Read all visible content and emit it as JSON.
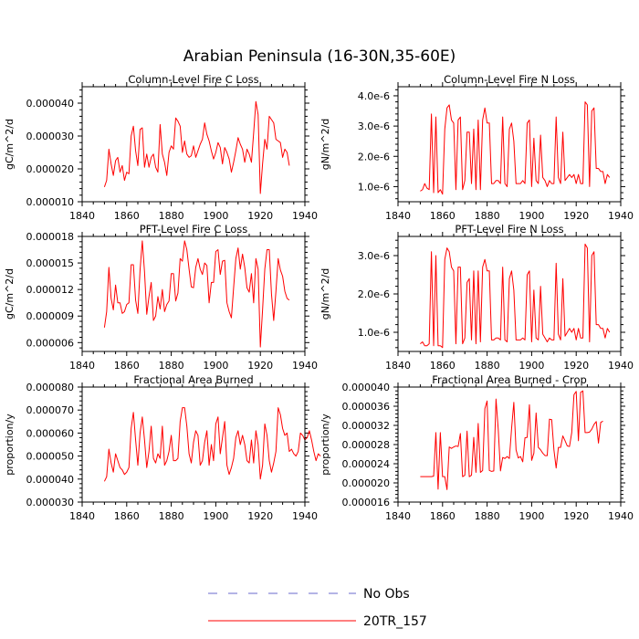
{
  "figure": {
    "title": "Arabian Peninsula (16-30N,35-60E)",
    "line_color": "#ff0000",
    "obs_color": "#6a6acd"
  },
  "legend": {
    "items": [
      {
        "label": "No Obs",
        "style": "dashed",
        "color": "#6a6acd"
      },
      {
        "label": "20TR_157",
        "style": "solid",
        "color": "#ff0000"
      }
    ]
  },
  "chart_data": [
    {
      "type": "line",
      "title": "Column-Level Fire C Loss",
      "xlabel": "",
      "ylabel": "gC/m^2/d",
      "xlim": [
        1840,
        1940
      ],
      "ylim": [
        1e-05,
        4.5e-05
      ],
      "xticks": [
        1840,
        1860,
        1880,
        1900,
        1920,
        1940
      ],
      "xticklabels": [
        "1840",
        "1860",
        "1880",
        "1900",
        "1920",
        "1940"
      ],
      "yticks": [
        1e-05,
        2e-05,
        3e-05,
        4e-05
      ],
      "yticklabels": [
        "0.000010",
        "0.000020",
        "0.000030",
        "0.000040"
      ],
      "x0": 1850,
      "series": [
        {
          "name": "20TR_157",
          "values": [
            1.45e-05,
            1.65e-05,
            2.6e-05,
            2.15e-05,
            1.8e-05,
            2.25e-05,
            2.35e-05,
            1.9e-05,
            2.1e-05,
            1.65e-05,
            1.9e-05,
            1.85e-05,
            3e-05,
            3.3e-05,
            2.55e-05,
            2.1e-05,
            3.2e-05,
            3.25e-05,
            2.05e-05,
            2.45e-05,
            2.05e-05,
            2.35e-05,
            2.45e-05,
            2.05e-05,
            1.9e-05,
            3.35e-05,
            2.45e-05,
            2.2e-05,
            1.8e-05,
            2.5e-05,
            2.7e-05,
            2.6e-05,
            3.55e-05,
            3.45e-05,
            3.3e-05,
            2.5e-05,
            2.85e-05,
            2.45e-05,
            2.35e-05,
            2.4e-05,
            2.7e-05,
            2.35e-05,
            2.55e-05,
            2.75e-05,
            2.9e-05,
            3.4e-05,
            3.05e-05,
            2.85e-05,
            2.55e-05,
            2.3e-05,
            2.5e-05,
            2.8e-05,
            2.65e-05,
            2.15e-05,
            2.65e-05,
            2.5e-05,
            2.3e-05,
            1.9e-05,
            2.2e-05,
            2.55e-05,
            2.95e-05,
            2.75e-05,
            2.6e-05,
            2.2e-05,
            2.6e-05,
            2.45e-05,
            2.2e-05,
            3.1e-05,
            4.05e-05,
            3.65e-05,
            1.25e-05,
            2.15e-05,
            2.9e-05,
            2.6e-05,
            3.6e-05,
            3.5e-05,
            3.4e-05,
            2.9e-05,
            2.85e-05,
            2.8e-05,
            2.35e-05,
            2.6e-05,
            2.5e-05,
            2.1e-05
          ]
        }
      ]
    },
    {
      "type": "line",
      "title": "Column-Level Fire N Loss",
      "xlabel": "",
      "ylabel": "gN/m^2/d",
      "xlim": [
        1840,
        1940
      ],
      "ylim": [
        5e-07,
        4.3e-06
      ],
      "xticks": [
        1840,
        1860,
        1880,
        1900,
        1920,
        1940
      ],
      "xticklabels": [
        "1840",
        "1860",
        "1880",
        "1900",
        "1920",
        "1940"
      ],
      "yticks": [
        1e-06,
        2e-06,
        3e-06,
        4e-06
      ],
      "yticklabels": [
        "1.0e-6",
        "2.0e-6",
        "3.0e-6",
        "4.0e-6"
      ],
      "x0": 1850,
      "series": [
        {
          "name": "20TR_157",
          "values": [
            8.5e-07,
            9e-07,
            1.1e-06,
            9.5e-07,
            9e-07,
            3.4e-06,
            8e-07,
            3.3e-06,
            8e-07,
            9e-07,
            7.5e-07,
            2.9e-06,
            3.6e-06,
            3.7e-06,
            3.2e-06,
            3.1e-06,
            9e-07,
            3.2e-06,
            3.3e-06,
            9e-07,
            1.2e-06,
            2.8e-06,
            2.8e-06,
            1.1e-06,
            2.9e-06,
            9e-07,
            3.2e-06,
            9e-07,
            3.2e-06,
            3.6e-06,
            3.1e-06,
            3.1e-06,
            1.1e-06,
            1.1e-06,
            1.2e-06,
            1.2e-06,
            1.1e-06,
            3.3e-06,
            1.1e-06,
            1e-06,
            2.9e-06,
            3.1e-06,
            2.5e-06,
            1.1e-06,
            1.1e-06,
            1.1e-06,
            1.2e-06,
            1.1e-06,
            3.1e-06,
            3.2e-06,
            1e-06,
            2.6e-06,
            1.2e-06,
            1.1e-06,
            2.7e-06,
            1.3e-06,
            1.2e-06,
            1e-06,
            1.2e-06,
            1.1e-06,
            1.1e-06,
            3.3e-06,
            1.3e-06,
            1.1e-06,
            2.8e-06,
            1.2e-06,
            1.3e-06,
            1.4e-06,
            1.3e-06,
            1.4e-06,
            1.1e-06,
            1.4e-06,
            1.1e-06,
            1.1e-06,
            3.8e-06,
            3.7e-06,
            1e-06,
            3.5e-06,
            3.6e-06,
            1.6e-06,
            1.6e-06,
            1.5e-06,
            1.5e-06,
            1.1e-06,
            1.4e-06,
            1.3e-06
          ]
        }
      ]
    },
    {
      "type": "line",
      "title": "PFT-Level Fire C Loss",
      "xlabel": "",
      "ylabel": "gC/m^2/d",
      "xlim": [
        1840,
        1940
      ],
      "ylim": [
        5e-06,
        1.8e-05
      ],
      "xticks": [
        1840,
        1860,
        1880,
        1900,
        1920,
        1940
      ],
      "xticklabels": [
        "1840",
        "1860",
        "1880",
        "1900",
        "1920",
        "1940"
      ],
      "yticks": [
        6e-06,
        9e-06,
        1.2e-05,
        1.5e-05,
        1.8e-05
      ],
      "yticklabels": [
        "0.000006",
        "0.000009",
        "0.000012",
        "0.000015",
        "0.000018"
      ],
      "x0": 1850,
      "series": [
        {
          "name": "20TR_157",
          "values": [
            7.7e-06,
            9.5e-06,
            1.45e-05,
            1.1e-05,
            9.7e-06,
            1.25e-05,
            1.05e-05,
            1.05e-05,
            9.3e-06,
            9.5e-06,
            1.03e-05,
            1.05e-05,
            1.48e-05,
            1.48e-05,
            1.08e-05,
            9.3e-06,
            1.42e-05,
            1.75e-05,
            1.4e-05,
            9.2e-06,
            1.12e-05,
            1.28e-05,
            8.5e-06,
            9e-06,
            1.12e-05,
            9.8e-06,
            1.2e-05,
            9.5e-06,
            1.03e-05,
            1.07e-05,
            1.38e-05,
            1.38e-05,
            1.07e-05,
            1.16e-05,
            1.55e-05,
            1.52e-05,
            1.75e-05,
            1.65e-05,
            1.43e-05,
            1.23e-05,
            1.22e-05,
            1.45e-05,
            1.55e-05,
            1.43e-05,
            1.37e-05,
            1.5e-05,
            1.47e-05,
            1.05e-05,
            1.28e-05,
            1.28e-05,
            1.63e-05,
            1.65e-05,
            1.37e-05,
            1.52e-05,
            1.53e-05,
            1.05e-05,
            9.5e-06,
            8.8e-06,
            1.22e-05,
            1.55e-05,
            1.67e-05,
            1.43e-05,
            1.6e-05,
            1.45e-05,
            1.22e-05,
            1.17e-05,
            1.38e-05,
            1.05e-05,
            1.55e-05,
            1.43e-05,
            5.5e-06,
            9.7e-06,
            1.43e-05,
            1.65e-05,
            1.65e-05,
            1.15e-05,
            8.5e-06,
            1.18e-05,
            1.55e-05,
            1.42e-05,
            1.35e-05,
            1.18e-05,
            1.1e-05,
            1.08e-05
          ]
        }
      ]
    },
    {
      "type": "line",
      "title": "PFT-Level Fire N Loss",
      "xlabel": "",
      "ylabel": "gN/m^2/d",
      "xlim": [
        1840,
        1940
      ],
      "ylim": [
        5e-07,
        3.5e-06
      ],
      "xticks": [
        1840,
        1860,
        1880,
        1900,
        1920,
        1940
      ],
      "xticklabels": [
        "1840",
        "1860",
        "1880",
        "1900",
        "1920",
        "1940"
      ],
      "yticks": [
        1e-06,
        2e-06,
        3e-06
      ],
      "yticklabels": [
        "1.0e-6",
        "2.0e-6",
        "3.0e-6"
      ],
      "x0": 1850,
      "series": [
        {
          "name": "20TR_157",
          "values": [
            7e-07,
            7.5e-07,
            6.5e-07,
            6.5e-07,
            7e-07,
            3.1e-06,
            6.5e-07,
            3e-06,
            6.5e-07,
            6.5e-07,
            6e-07,
            2.9e-06,
            3.2e-06,
            3.1e-06,
            2.7e-06,
            2.6e-06,
            7e-07,
            2.7e-06,
            2.7e-06,
            7e-07,
            8.5e-07,
            2.3e-06,
            2.4e-06,
            8e-07,
            2.6e-06,
            7e-07,
            2.6e-06,
            7.5e-07,
            2.7e-06,
            2.9e-06,
            2.6e-06,
            2.6e-06,
            8e-07,
            8e-07,
            8.5e-07,
            8.5e-07,
            8e-07,
            2.7e-06,
            8e-07,
            7.5e-07,
            2.4e-06,
            2.6e-06,
            2.1e-06,
            8e-07,
            8e-07,
            8e-07,
            8.5e-07,
            8e-07,
            2.5e-06,
            2.6e-06,
            7.5e-07,
            2.1e-06,
            8.5e-07,
            8e-07,
            2.2e-06,
            9.5e-07,
            8.5e-07,
            7.5e-07,
            8.5e-07,
            8e-07,
            8e-07,
            2.8e-06,
            9.5e-07,
            8e-07,
            2.4e-06,
            9e-07,
            1e-06,
            1.1e-06,
            1e-06,
            1.1e-06,
            8e-07,
            1.1e-06,
            8.5e-07,
            8.5e-07,
            3.3e-06,
            3.2e-06,
            7.5e-07,
            3e-06,
            3.1e-06,
            1.2e-06,
            1.2e-06,
            1.1e-06,
            1.1e-06,
            8.5e-07,
            1.1e-06,
            1e-06
          ]
        }
      ]
    },
    {
      "type": "line",
      "title": "Fractional Area Burned",
      "xlabel": "",
      "ylabel": "proportion/y",
      "xlim": [
        1840,
        1940
      ],
      "ylim": [
        3e-05,
        8e-05
      ],
      "xticks": [
        1840,
        1860,
        1880,
        1900,
        1920,
        1940
      ],
      "xticklabels": [
        "1840",
        "1860",
        "1880",
        "1900",
        "1920",
        "1940"
      ],
      "yticks": [
        3e-05,
        4e-05,
        5e-05,
        6e-05,
        7e-05,
        8e-05
      ],
      "yticklabels": [
        "0.000030",
        "0.000040",
        "0.000050",
        "0.000060",
        "0.000070",
        "0.000080"
      ],
      "x0": 1850,
      "series": [
        {
          "name": "20TR_157",
          "values": [
            3.9e-05,
            4.1e-05,
            5.3e-05,
            4.7e-05,
            4.3e-05,
            5.1e-05,
            4.8e-05,
            4.5e-05,
            4.4e-05,
            4.2e-05,
            4.3e-05,
            4.5e-05,
            6.2e-05,
            6.9e-05,
            5.7e-05,
            4.6e-05,
            6e-05,
            6.7e-05,
            5.7e-05,
            4.5e-05,
            5.2e-05,
            6.3e-05,
            4.9e-05,
            4.7e-05,
            5.1e-05,
            4.9e-05,
            6.3e-05,
            4.6e-05,
            4.8e-05,
            5.2e-05,
            5.9e-05,
            4.8e-05,
            4.8e-05,
            4.9e-05,
            6.5e-05,
            7.1e-05,
            7.1e-05,
            6.3e-05,
            5.1e-05,
            4.7e-05,
            5.6e-05,
            6.1e-05,
            5.9e-05,
            4.6e-05,
            4.8e-05,
            5.6e-05,
            6.1e-05,
            4.6e-05,
            5.5e-05,
            4.8e-05,
            6.4e-05,
            6.7e-05,
            5.1e-05,
            5.8e-05,
            6.5e-05,
            4.6e-05,
            4.2e-05,
            4.5e-05,
            4.9e-05,
            5.8e-05,
            6.1e-05,
            5.5e-05,
            5.9e-05,
            5.5e-05,
            4.8e-05,
            4.7e-05,
            5.7e-05,
            4.7e-05,
            6.1e-05,
            5.5e-05,
            4e-05,
            4.6e-05,
            6.4e-05,
            5.9e-05,
            4.8e-05,
            4.3e-05,
            4.7e-05,
            5.2e-05,
            7.1e-05,
            6.8e-05,
            6.2e-05,
            5.9e-05,
            6e-05,
            5.2e-05,
            5.3e-05,
            5.1e-05,
            5e-05,
            5.2e-05,
            6e-05,
            5.9e-05,
            5.7e-05,
            5.8e-05,
            6.1e-05,
            5.7e-05,
            5.2e-05,
            4.8e-05,
            5.1e-05,
            5e-05
          ]
        }
      ]
    },
    {
      "type": "line",
      "title": "Fractional Area Burned - Crop",
      "xlabel": "",
      "ylabel": "proportion/y",
      "xlim": [
        1840,
        1940
      ],
      "ylim": [
        1.6e-05,
        4e-05
      ],
      "xticks": [
        1840,
        1860,
        1880,
        1900,
        1920,
        1940
      ],
      "xticklabels": [
        "1840",
        "1860",
        "1880",
        "1900",
        "1920",
        "1940"
      ],
      "yticks": [
        1.6e-05,
        2e-05,
        2.4e-05,
        2.8e-05,
        3.2e-05,
        3.6e-05,
        4e-05
      ],
      "yticklabels": [
        "0.000016",
        "0.000020",
        "0.000024",
        "0.000028",
        "0.000032",
        "0.000036",
        "0.000040"
      ],
      "x0": 1850,
      "series": [
        {
          "name": "20TR_157",
          "values": [
            2.13e-05,
            2.13e-05,
            2.13e-05,
            2.13e-05,
            2.13e-05,
            2.13e-05,
            2.14e-05,
            3.05e-05,
            1.87e-05,
            3.05e-05,
            2.13e-05,
            2.13e-05,
            1.86e-05,
            2.75e-05,
            2.72e-05,
            2.75e-05,
            2.77e-05,
            2.76e-05,
            3.03e-05,
            2.13e-05,
            2.16e-05,
            3.08e-05,
            2.13e-05,
            2.16e-05,
            2.95e-05,
            2.22e-05,
            3.24e-05,
            2.22e-05,
            2.26e-05,
            3.55e-05,
            3.71e-05,
            2.26e-05,
            2.24e-05,
            2.25e-05,
            3.75e-05,
            3.12e-05,
            2.25e-05,
            2.53e-05,
            2.51e-05,
            2.55e-05,
            2.51e-05,
            3.14e-05,
            3.68e-05,
            2.69e-05,
            2.52e-05,
            2.55e-05,
            2.44e-05,
            2.94e-05,
            2.95e-05,
            3.63e-05,
            2.47e-05,
            2.62e-05,
            3.46e-05,
            2.74e-05,
            2.69e-05,
            2.62e-05,
            2.57e-05,
            2.57e-05,
            3.33e-05,
            3.32e-05,
            2.69e-05,
            2.31e-05,
            2.74e-05,
            2.74e-05,
            2.98e-05,
            2.88e-05,
            2.77e-05,
            2.76e-05,
            3.05e-05,
            3.84e-05,
            3.91e-05,
            2.88e-05,
            3.89e-05,
            3.92e-05,
            3.05e-05,
            3.05e-05,
            3.06e-05,
            3.12e-05,
            3.22e-05,
            3.28e-05,
            2.83e-05,
            3.26e-05,
            3.29e-05
          ]
        }
      ]
    }
  ]
}
